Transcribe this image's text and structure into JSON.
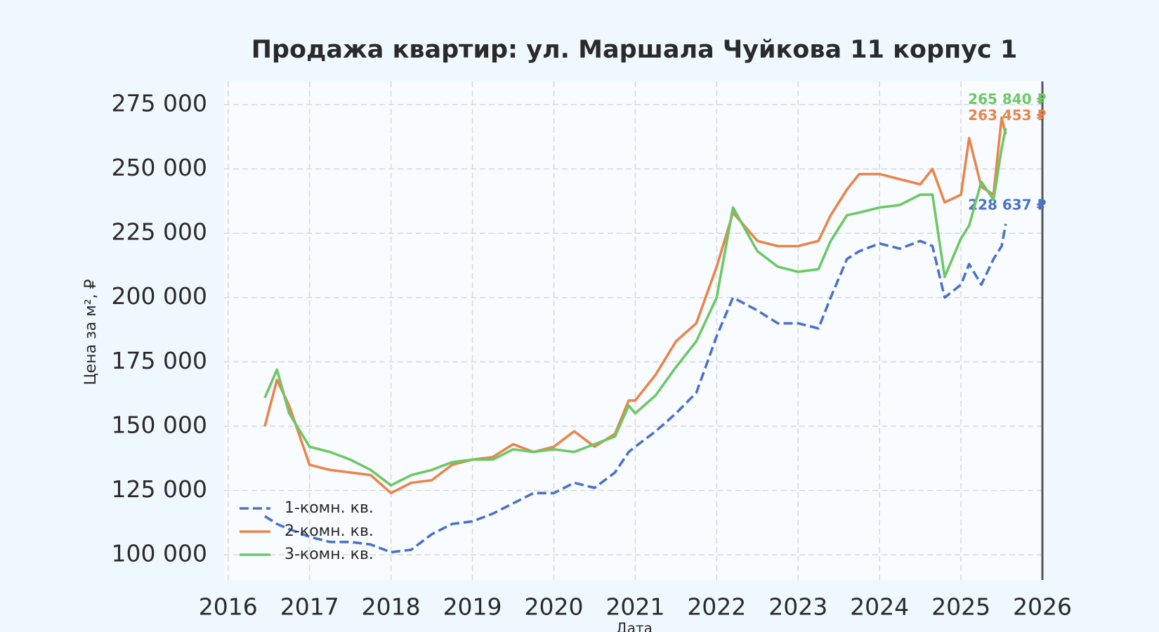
{
  "chart_data": {
    "type": "line",
    "title": "Продажа квартир: ул. Маршала Чуйкова 11 корпус 1",
    "xlabel": "Дата",
    "ylabel": "Цена за м², ₽",
    "x": [
      2016.45,
      2016.6,
      2016.75,
      2017.0,
      2017.25,
      2017.5,
      2017.75,
      2018.0,
      2018.25,
      2018.5,
      2018.75,
      2019.0,
      2019.25,
      2019.5,
      2019.75,
      2020.0,
      2020.25,
      2020.5,
      2020.75,
      2020.92,
      2021.0,
      2021.25,
      2021.5,
      2021.75,
      2022.0,
      2022.2,
      2022.5,
      2022.75,
      2023.0,
      2023.25,
      2023.4,
      2023.6,
      2023.75,
      2024.0,
      2024.25,
      2024.5,
      2024.65,
      2024.8,
      2025.0,
      2025.1,
      2025.25,
      2025.4,
      2025.5,
      2025.55
    ],
    "series": [
      {
        "name": "1-комн. кв.",
        "color": "#4a72c8",
        "dashed": true,
        "end_label": "228 637 ₽",
        "values": [
          115000,
          112000,
          110000,
          107000,
          105000,
          105000,
          104000,
          101000,
          102000,
          108000,
          112000,
          113000,
          116000,
          120000,
          124000,
          124000,
          128000,
          126000,
          132000,
          140000,
          142000,
          148000,
          155000,
          163000,
          185000,
          200000,
          195000,
          190000,
          190000,
          188000,
          200000,
          215000,
          218000,
          221000,
          219000,
          222000,
          220000,
          200000,
          205000,
          213000,
          205000,
          215000,
          220000,
          228637
        ]
      },
      {
        "name": "2-комн. кв.",
        "color": "#e8854c",
        "dashed": false,
        "end_label": "263 453 ₽",
        "values": [
          150000,
          168000,
          158000,
          135000,
          133000,
          132000,
          131000,
          124000,
          128000,
          129000,
          135000,
          137000,
          138000,
          143000,
          140000,
          142000,
          148000,
          142000,
          147000,
          160000,
          160000,
          170000,
          183000,
          190000,
          212000,
          233000,
          222000,
          220000,
          220000,
          222000,
          232000,
          242000,
          248000,
          248000,
          246000,
          244000,
          250000,
          237000,
          240000,
          262000,
          243000,
          240000,
          270000,
          263453
        ]
      },
      {
        "name": "3-комн. кв.",
        "color": "#6cc865",
        "dashed": false,
        "end_label": "265 840 ₽",
        "values": [
          161000,
          172000,
          155000,
          142000,
          140000,
          137000,
          133000,
          127000,
          131000,
          133000,
          136000,
          137000,
          137000,
          141000,
          140000,
          141000,
          140000,
          143000,
          146000,
          158000,
          155000,
          162000,
          173000,
          183000,
          200000,
          235000,
          218000,
          212000,
          210000,
          211000,
          222000,
          232000,
          233000,
          235000,
          236000,
          240000,
          240000,
          208000,
          223000,
          228000,
          245000,
          238000,
          258000,
          265840
        ]
      }
    ],
    "xlim": [
      2015.95,
      2026
    ],
    "xticks": [
      2016,
      2017,
      2018,
      2019,
      2020,
      2021,
      2022,
      2023,
      2024,
      2025,
      2026
    ],
    "ylim": [
      90200,
      284000
    ],
    "yticks": [
      {
        "value": 100000,
        "label": "100 000"
      },
      {
        "value": 125000,
        "label": "125 000"
      },
      {
        "value": 150000,
        "label": "150 000"
      },
      {
        "value": 175000,
        "label": "175 000"
      },
      {
        "value": 200000,
        "label": "200 000"
      },
      {
        "value": 225000,
        "label": "225 000"
      },
      {
        "value": 250000,
        "label": "250 000"
      },
      {
        "value": 275000,
        "label": "275 000"
      }
    ],
    "grid": true,
    "legend": "lower left"
  }
}
